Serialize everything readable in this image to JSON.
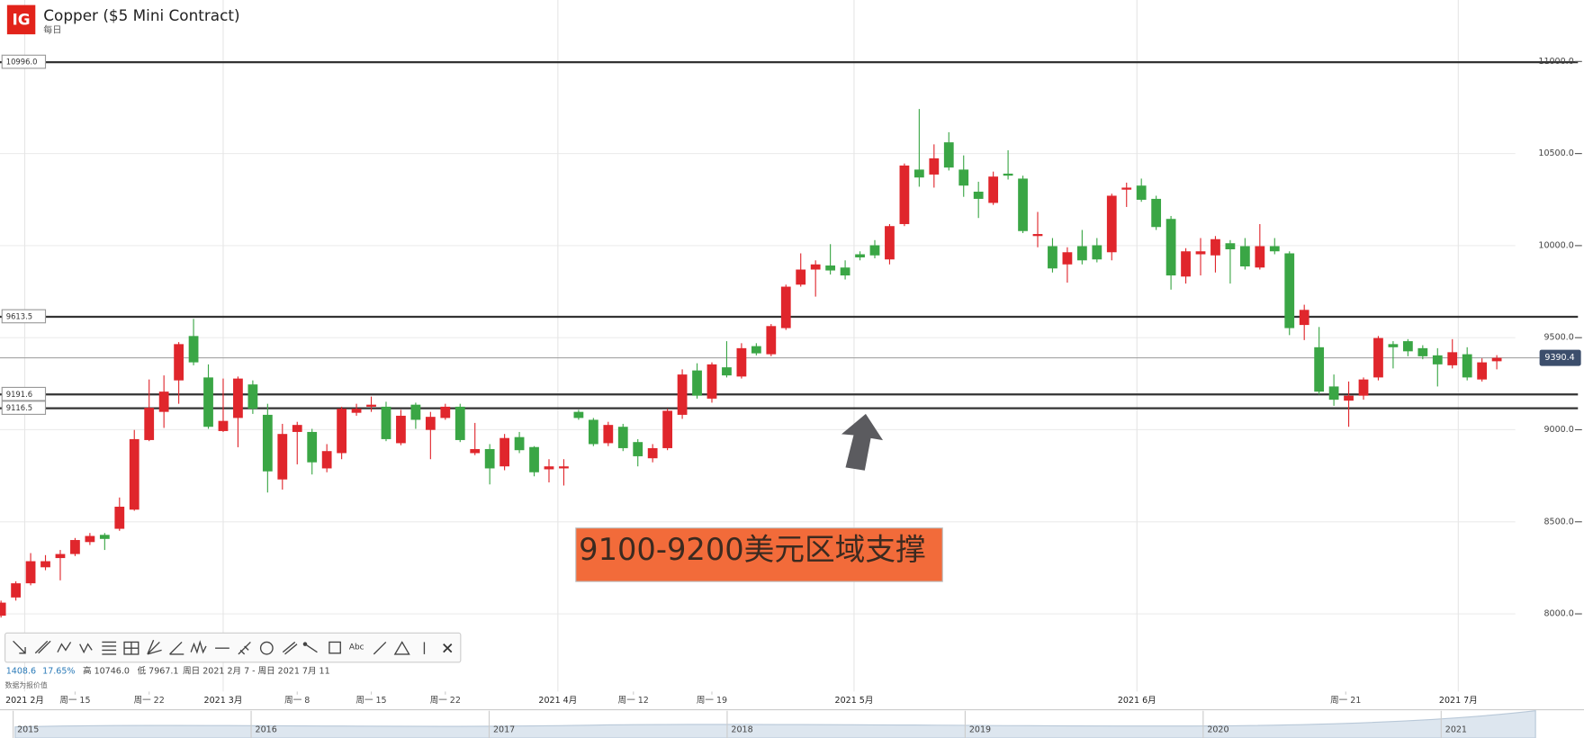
{
  "header": {
    "logo": "IG",
    "title": "Copper ($5 Mini Contract)",
    "interval": "每日"
  },
  "toolbar": {
    "text_tool": "Abc"
  },
  "info": {
    "change": "1408.6",
    "change_pct": "17.65%",
    "high": "高 10746.0",
    "low": "低 7967.1",
    "range": "周日 2021 2月 7 - 周日 2021 7月 11",
    "note": "数据为报价值"
  },
  "annotation": "9100-9200美元区域支撑",
  "navigator": {
    "years": [
      "2015",
      "2016",
      "2017",
      "2018",
      "2019",
      "2020",
      "2021"
    ]
  },
  "chart_data": {
    "type": "candlestick",
    "up_color": "#e0262c",
    "down_color": "#3aa645",
    "grid": true,
    "xlim": [
      -0.07,
      102.25
    ],
    "ylim": [
      7578,
      11334
    ],
    "yticks": [
      {
        "value": 8000,
        "label": "8000.0"
      },
      {
        "value": 8500,
        "label": "8500.0"
      },
      {
        "value": 9000,
        "label": "9000.0"
      },
      {
        "value": 9500,
        "label": "9500.0"
      },
      {
        "value": 10000,
        "label": "10000.0"
      },
      {
        "value": 10500,
        "label": "10500.0"
      },
      {
        "value": 11000,
        "label": "11000.0"
      }
    ],
    "xticks": [
      {
        "value": 1.6,
        "label": "2021 2月"
      },
      {
        "value": 15,
        "label": "2021 3月"
      },
      {
        "value": 37.6,
        "label": "2021 4月"
      },
      {
        "value": 57.6,
        "label": "2021 5月"
      },
      {
        "value": 76.7,
        "label": "2021 6月"
      },
      {
        "value": 98.4,
        "label": "2021 7月"
      }
    ],
    "xticks_minor": [
      {
        "value": 5,
        "label": "周一 15"
      },
      {
        "value": 10,
        "label": "周一 22"
      },
      {
        "value": 20,
        "label": "周一 8"
      },
      {
        "value": 25,
        "label": "周一 15"
      },
      {
        "value": 30,
        "label": "周一 22"
      },
      {
        "value": 42.7,
        "label": "周一 12"
      },
      {
        "value": 48,
        "label": "周一 19"
      },
      {
        "value": 90.8,
        "label": "周一 21"
      }
    ],
    "levels": [
      {
        "value": 10996.0,
        "label": "10996.0"
      },
      {
        "value": 9613.5,
        "label": "9613.5"
      },
      {
        "value": 9191.6,
        "label": "9191.6"
      },
      {
        "value": 9116.5,
        "label": "9116.5"
      }
    ],
    "last_price": {
      "value": 9390.4,
      "label": "9390.4"
    },
    "x": [
      0,
      1,
      2,
      3,
      4,
      5,
      6,
      7,
      8,
      9,
      10,
      11,
      12,
      13,
      14,
      15,
      16,
      17,
      18,
      19,
      20,
      21,
      22,
      23,
      24,
      25,
      26,
      27,
      28,
      29,
      30,
      31,
      32,
      33,
      34,
      35,
      36,
      37,
      38,
      39,
      40,
      41,
      42,
      43,
      44,
      45,
      46,
      47,
      48,
      49,
      50,
      51,
      52,
      53,
      54,
      55,
      56,
      57,
      58,
      59,
      60,
      61,
      62,
      63,
      64,
      65,
      66,
      67,
      68,
      69,
      70,
      71,
      72,
      73,
      74,
      75,
      76,
      77,
      78,
      79,
      80,
      81,
      82,
      83,
      84,
      85,
      86,
      87,
      88,
      89,
      90,
      91,
      92,
      93,
      94,
      95,
      96,
      97,
      98,
      99,
      100,
      101
    ],
    "open": [
      7990,
      8089,
      8166,
      8253,
      8303,
      8325,
      8390,
      8429,
      8462,
      8566,
      8944,
      9097,
      9268,
      9509,
      9284,
      8993,
      9064,
      9246,
      9081,
      8730,
      8988,
      8988,
      8790,
      8873,
      9092,
      9125,
      9125,
      8927,
      9136,
      8999,
      9064,
      9125,
      8873,
      8895,
      8801,
      8960,
      8906,
      8785,
      8790,
      9097,
      9054,
      8927,
      9016,
      8933,
      8845,
      8900,
      9081,
      9322,
      9169,
      9339,
      9289,
      9454,
      9410,
      9552,
      9788,
      9870,
      9892,
      9881,
      9953,
      10002,
      9925,
      10117,
      10413,
      10386,
      10561,
      10413,
      10293,
      10232,
      10391,
      10364,
      10052,
      9997,
      9898,
      9997,
      10002,
      9964,
      10304,
      10326,
      10254,
      10145,
      9832,
      9953,
      9947,
      10013,
      9997,
      9881,
      9997,
      9958,
      9569,
      9448,
      9235,
      9158,
      9185,
      9284,
      9465,
      9481,
      9443,
      9404,
      9350,
      9410,
      9273,
      9372
    ],
    "high": [
      8072,
      8177,
      8330,
      8319,
      8347,
      8412,
      8439,
      8439,
      8632,
      8999,
      9273,
      9295,
      9476,
      9602,
      9355,
      9278,
      9289,
      9268,
      9141,
      9032,
      9043,
      9005,
      8922,
      9125,
      9141,
      9180,
      9152,
      9108,
      9147,
      9097,
      9141,
      9141,
      9037,
      8922,
      8977,
      8988,
      8911,
      8840,
      8840,
      9108,
      9064,
      9043,
      9032,
      8949,
      8922,
      9114,
      9328,
      9361,
      9366,
      9481,
      9470,
      9470,
      9574,
      9788,
      9958,
      9920,
      10008,
      9920,
      9969,
      10030,
      10117,
      10446,
      10742,
      10550,
      10616,
      10490,
      10347,
      10402,
      10518,
      10380,
      10183,
      10041,
      9991,
      10085,
      10041,
      10282,
      10342,
      10364,
      10271,
      10161,
      9986,
      10041,
      10052,
      10030,
      10041,
      10117,
      10041,
      9969,
      9679,
      9558,
      9300,
      9262,
      9284,
      9509,
      9481,
      9492,
      9459,
      9443,
      9492,
      9448,
      9388,
      9405
    ],
    "low": [
      7980,
      8072,
      8155,
      8237,
      8182,
      8314,
      8374,
      8347,
      8451,
      8560,
      8938,
      9010,
      9141,
      9350,
      9005,
      8988,
      8905,
      9086,
      8659,
      8675,
      8812,
      8757,
      8769,
      8840,
      9076,
      9097,
      8938,
      8916,
      9005,
      8840,
      9054,
      8933,
      8862,
      8703,
      8780,
      8873,
      8747,
      8714,
      8697,
      9054,
      8911,
      8911,
      8884,
      8801,
      8823,
      8889,
      9059,
      9169,
      9147,
      9284,
      9278,
      9404,
      9399,
      9542,
      9777,
      9723,
      9843,
      9816,
      9920,
      9931,
      9898,
      10106,
      10320,
      10315,
      10408,
      10265,
      10150,
      10221,
      10359,
      10068,
      9991,
      9854,
      9799,
      9898,
      9909,
      9920,
      10210,
      10238,
      10085,
      9761,
      9794,
      9838,
      9854,
      9794,
      9870,
      9870,
      9953,
      9514,
      9487,
      9191,
      9130,
      9016,
      9163,
      9268,
      9333,
      9399,
      9383,
      9235,
      9333,
      9268,
      9262,
      9328
    ],
    "close": [
      8061,
      8166,
      8286,
      8286,
      8325,
      8401,
      8423,
      8407,
      8582,
      8949,
      9119,
      9207,
      9465,
      9366,
      9016,
      9048,
      9278,
      9114,
      8774,
      8977,
      9026,
      8823,
      8884,
      9114,
      9114,
      9136,
      8949,
      9076,
      9054,
      9070,
      9125,
      8944,
      8895,
      8790,
      8955,
      8889,
      8769,
      8801,
      8801,
      9064,
      8922,
      9026,
      8900,
      8856,
      8900,
      9103,
      9300,
      9185,
      9355,
      9295,
      9443,
      9415,
      9563,
      9777,
      9870,
      9898,
      9865,
      9838,
      9936,
      9947,
      10106,
      10435,
      10370,
      10474,
      10424,
      10326,
      10254,
      10375,
      10380,
      10079,
      10063,
      9876,
      9964,
      9920,
      9925,
      10271,
      10315,
      10249,
      10101,
      9838,
      9969,
      9969,
      10035,
      9980,
      9887,
      9997,
      9969,
      9552,
      9651,
      9207,
      9163,
      9185,
      9273,
      9498,
      9448,
      9426,
      9399,
      9355,
      9421,
      9284,
      9366,
      9390.4
    ]
  }
}
